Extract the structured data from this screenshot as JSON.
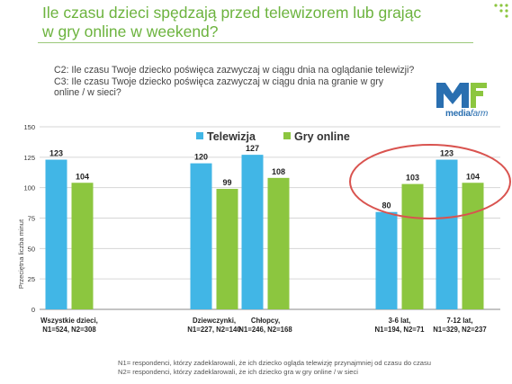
{
  "title_lines": [
    "Ile czasu dzieci spędzają przed telewizorem lub grając",
    "w gry online w weekend?"
  ],
  "questions": [
    "C2: Ile czasu Twoje dziecko poświęca zazwyczaj w ciągu dnia na oglądanie telewizji?",
    "C3: Ile czasu Twoje dziecko poświęca zazwyczaj w ciągu dnia na granie w gry",
    "online / w sieci?"
  ],
  "logo": {
    "brand_bold": "media",
    "brand_light": "farm"
  },
  "colors": {
    "tv": "#41b6e6",
    "online": "#8cc63f",
    "title": "#6cb33e",
    "highlight": "#d9534f"
  },
  "footnotes": [
    "N1= respondenci, którzy zadeklarowali, że ich dziecko ogląda telewizję przynajmniej od czasu do czasu",
    "N2= respondenci, którzy zadeklarowali, że ich dziecko gra w gry online / w sieci"
  ],
  "chart_data": {
    "type": "bar",
    "ylabel": "Przeciętna liczba minut",
    "ylim": [
      0,
      150
    ],
    "yticks": [
      0,
      25,
      50,
      75,
      100,
      125,
      150
    ],
    "legend_position": "top",
    "categories": [
      {
        "label": "Wszystkie dzieci,",
        "sub": "N1=524, N2=308"
      },
      {
        "label": "Dziewczynki,",
        "sub": "N1=227, N2=140"
      },
      {
        "label": "Chłopcy,",
        "sub": "N1=246, N2=168"
      },
      {
        "label": "3-6 lat,",
        "sub": "N1=194, N2=71"
      },
      {
        "label": "7-12 lat,",
        "sub": "N1=329, N2=237"
      }
    ],
    "series": [
      {
        "name": "Telewizja",
        "values": [
          123,
          120,
          127,
          80,
          123
        ]
      },
      {
        "name": "Gry online",
        "values": [
          104,
          99,
          108,
          103,
          104
        ]
      }
    ],
    "highlighted_categories": [
      "3-6 lat,",
      "7-12 lat,"
    ]
  }
}
